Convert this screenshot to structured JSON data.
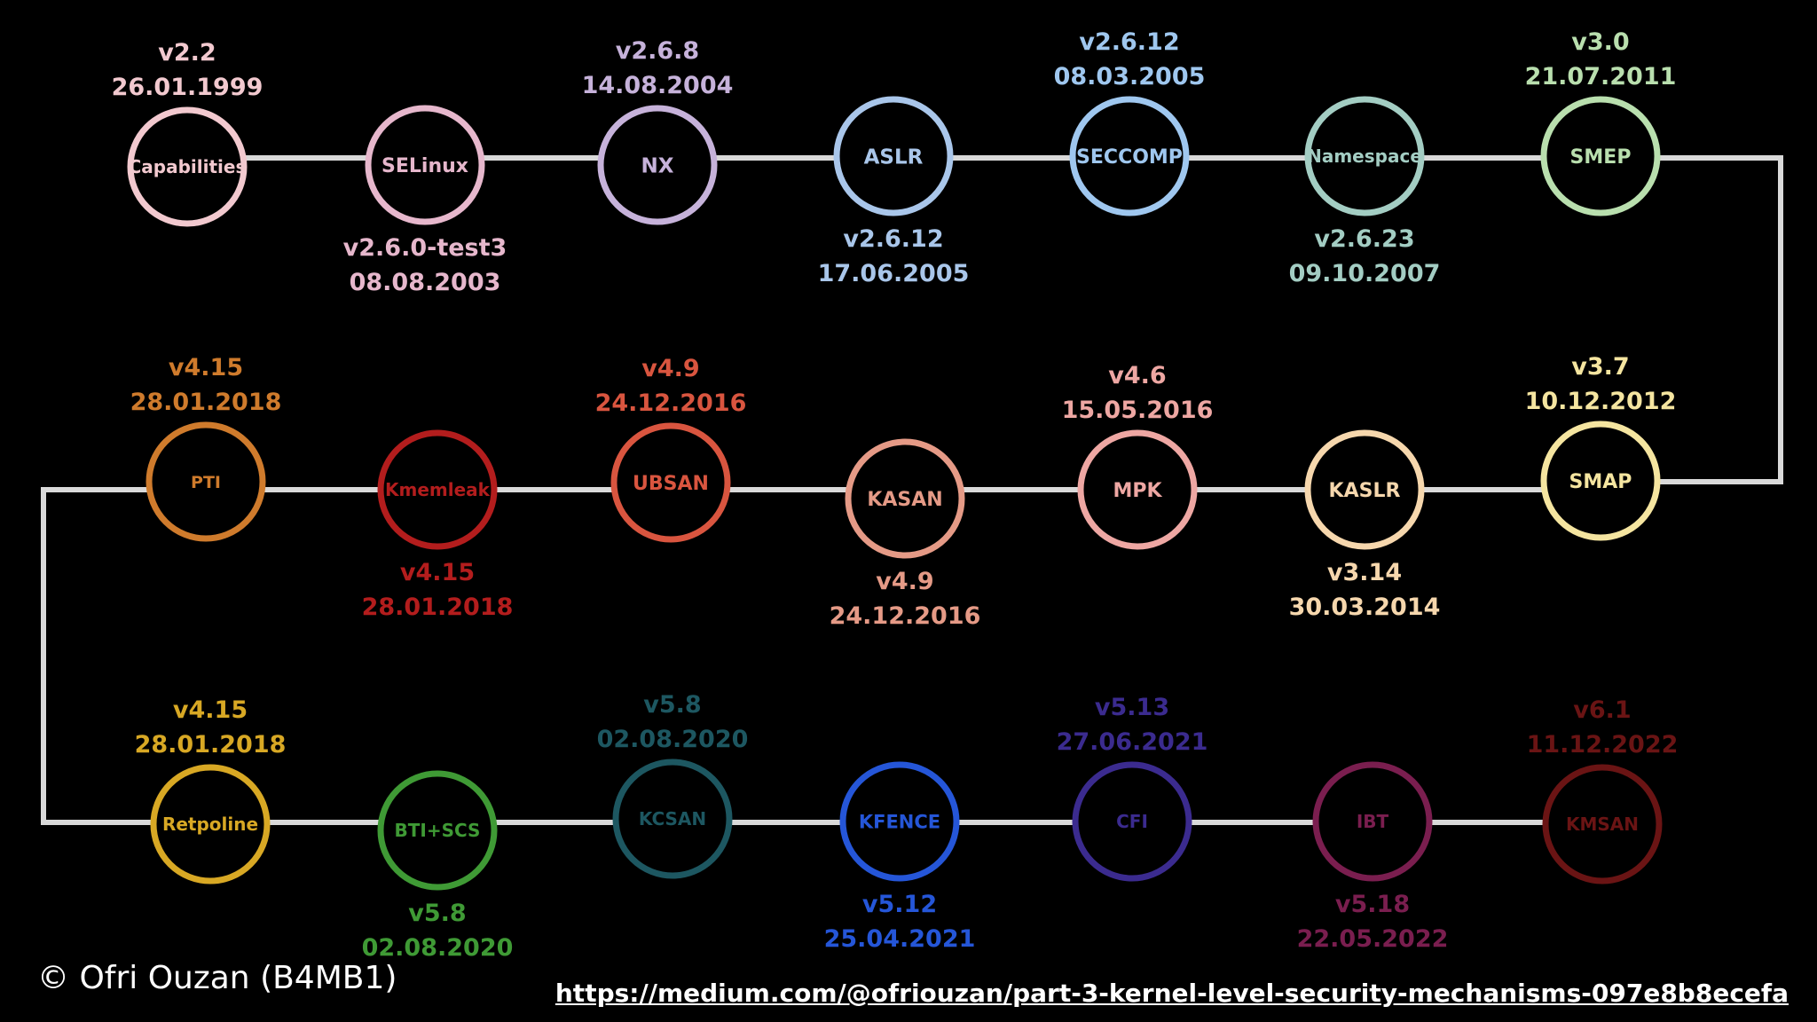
{
  "diagram": {
    "mechanisms": [
      {
        "name": "Capabilities",
        "version": "v2.2",
        "date": "26.01.1999",
        "color": "#f2c9cf"
      },
      {
        "name": "SELinux",
        "version": "v2.6.0-test3",
        "date": "08.08.2003",
        "color": "#e6b7cc"
      },
      {
        "name": "NX",
        "version": "v2.6.8",
        "date": "14.08.2004",
        "color": "#c6b2da"
      },
      {
        "name": "ASLR",
        "version": "v2.6.12",
        "date": "17.06.2005",
        "color": "#a9c6ea"
      },
      {
        "name": "SECCOMP",
        "version": "v2.6.12",
        "date": "08.03.2005",
        "color": "#9fc7ef"
      },
      {
        "name": "Namespace",
        "version": "v2.6.23",
        "date": "09.10.2007",
        "color": "#a3cdc3"
      },
      {
        "name": "SMEP",
        "version": "v3.0",
        "date": "21.07.2011",
        "color": "#b9dfae"
      },
      {
        "name": "SMAP",
        "version": "v3.7",
        "date": "10.12.2012",
        "color": "#f5e5a0"
      },
      {
        "name": "KASLR",
        "version": "v3.14",
        "date": "30.03.2014",
        "color": "#f6d7ad"
      },
      {
        "name": "MPK",
        "version": "v4.6",
        "date": "15.05.2016",
        "color": "#eea7a3"
      },
      {
        "name": "KASAN",
        "version": "v4.9",
        "date": "24.12.2016",
        "color": "#e59a86"
      },
      {
        "name": "UBSAN",
        "version": "v4.9",
        "date": "24.12.2016",
        "color": "#d9553f"
      },
      {
        "name": "Kmemleak",
        "version": "v4.15",
        "date": "28.01.2018",
        "color": "#b31d1d"
      },
      {
        "name": "PTI",
        "version": "v4.15",
        "date": "28.01.2018",
        "color": "#cf7b2c"
      },
      {
        "name": "Retpoline",
        "version": "v4.15",
        "date": "28.01.2018",
        "color": "#d8a824"
      },
      {
        "name": "BTI+SCS",
        "version": "v5.8",
        "date": "02.08.2020",
        "color": "#3f9a35"
      },
      {
        "name": "KCSAN",
        "version": "v5.8",
        "date": "02.08.2020",
        "color": "#1d5761"
      },
      {
        "name": "KFENCE",
        "version": "v5.12",
        "date": "25.04.2021",
        "color": "#2556d8"
      },
      {
        "name": "CFI",
        "version": "v5.13",
        "date": "27.06.2021",
        "color": "#3b2b8f"
      },
      {
        "name": "IBT",
        "version": "v5.18",
        "date": "22.05.2022",
        "color": "#7a1e4f"
      },
      {
        "name": "KMSAN",
        "version": "v6.1",
        "date": "11.12.2022",
        "color": "#6a1414"
      }
    ],
    "line_color": "#d9d9d9"
  },
  "footer": {
    "copyright": "© Ofri Ouzan (B4MB1)",
    "source_url": "https://medium.com/@ofriouzan/part-3-kernel-level-security-mechanisms-097e8b8ecefa"
  }
}
